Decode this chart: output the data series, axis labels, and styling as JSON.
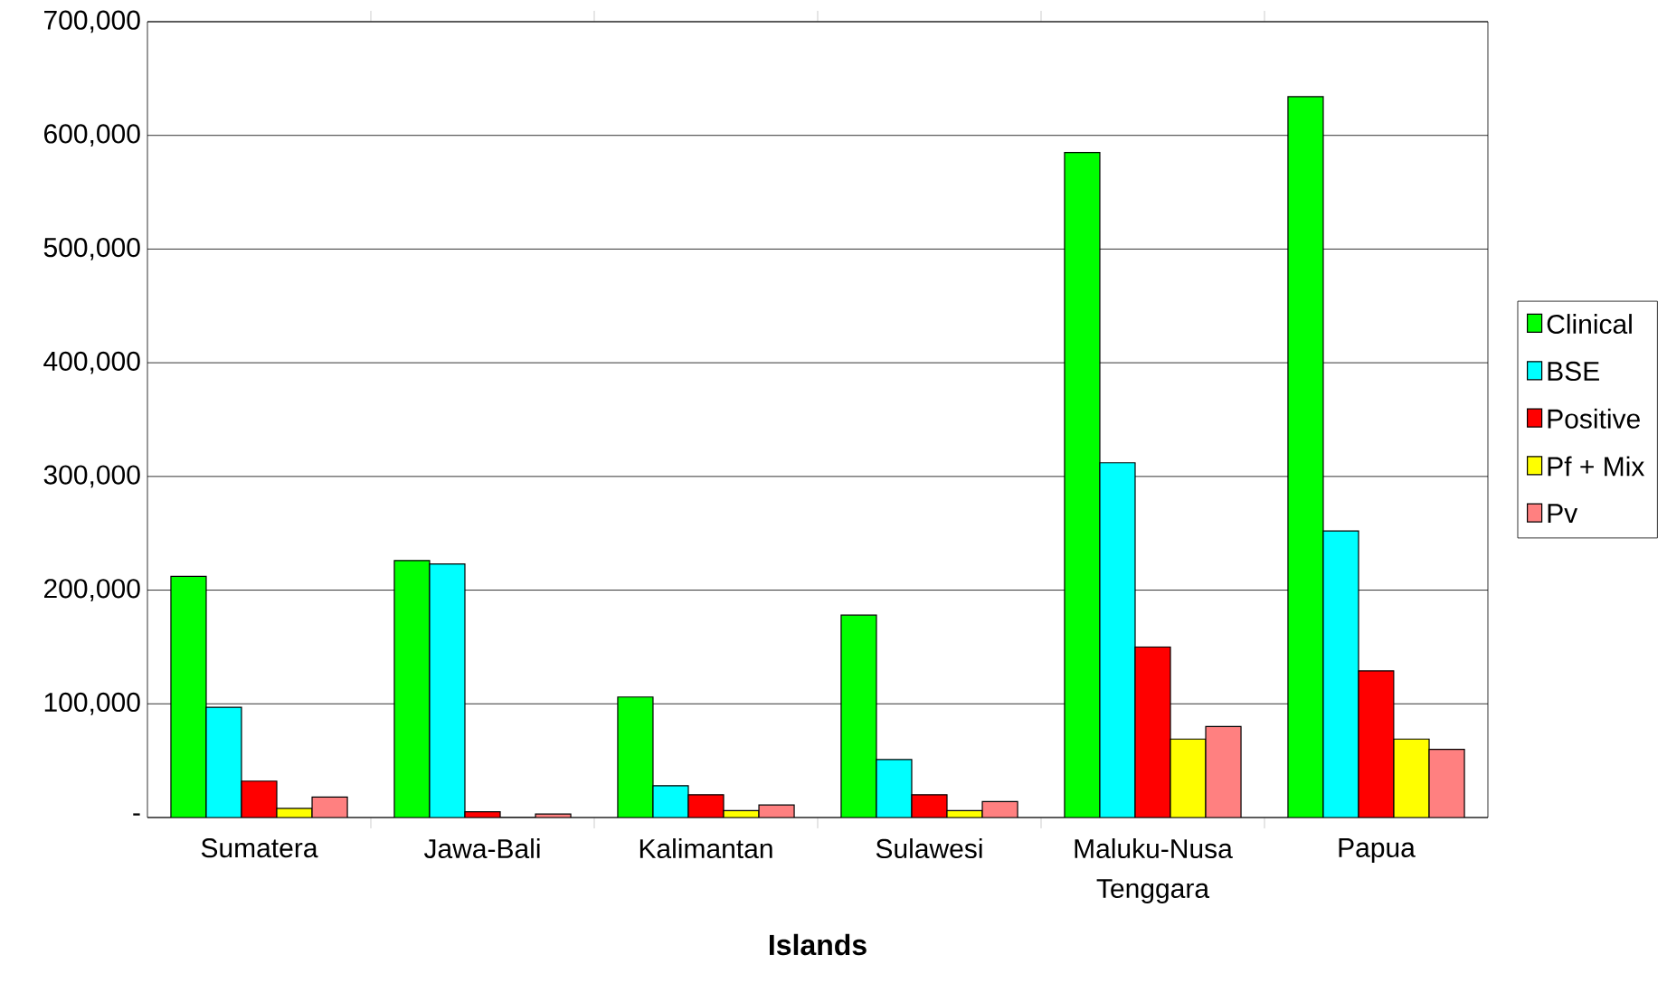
{
  "chart_data": {
    "type": "bar",
    "xlabel": "Islands",
    "categories": [
      "Sumatera",
      "Jawa-Bali",
      "Kalimantan",
      "Sulawesi",
      "Maluku-Nusa Tenggara",
      "Papua"
    ],
    "series": [
      {
        "name": "Clinical",
        "color": "#00ff00",
        "values": [
          212000,
          226000,
          106000,
          178000,
          585000,
          634000
        ]
      },
      {
        "name": "BSE",
        "color": "#00ffff",
        "values": [
          97000,
          223000,
          28000,
          51000,
          312000,
          252000
        ]
      },
      {
        "name": "Positive",
        "color": "#ff0000",
        "values": [
          32000,
          5000,
          20000,
          20000,
          150000,
          129000
        ]
      },
      {
        "name": "Pf + Mix",
        "color": "#ffff00",
        "values": [
          8000,
          0,
          6000,
          6000,
          69000,
          69000
        ]
      },
      {
        "name": "Pv",
        "color": "#ff8080",
        "values": [
          18000,
          3000,
          11000,
          14000,
          80000,
          60000
        ]
      }
    ],
    "ylim": [
      0,
      700000
    ],
    "yticks": [
      {
        "value": 0,
        "label": "-"
      },
      {
        "value": 100000,
        "label": "100,000"
      },
      {
        "value": 200000,
        "label": "200,000"
      },
      {
        "value": 300000,
        "label": "300,000"
      },
      {
        "value": 400000,
        "label": "400,000"
      },
      {
        "value": 500000,
        "label": "500,000"
      },
      {
        "value": 600000,
        "label": "600,000"
      },
      {
        "value": 700000,
        "label": "700,000"
      }
    ],
    "grid": "y",
    "legend": "right"
  }
}
